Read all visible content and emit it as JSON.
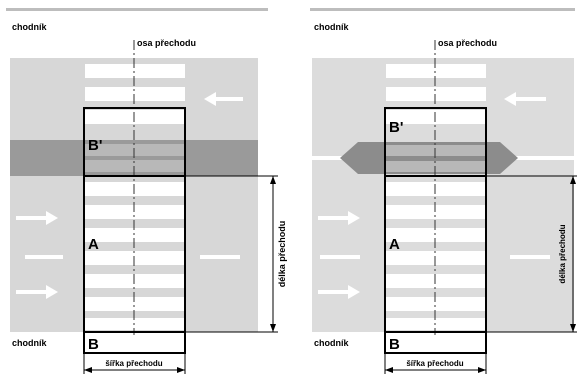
{
  "left_panel": {
    "sidewalk_top": "chodník",
    "sidewalk_bottom": "chodník",
    "crossing_axis": "osa přechodu",
    "zone_b_prime": "B'",
    "zone_a": "A",
    "zone_b": "B",
    "crossing_length": "délka přechodu",
    "crossing_width": "šířka přechodu"
  },
  "right_panel": {
    "sidewalk_top": "chodník",
    "sidewalk_bottom": "chodník",
    "crossing_axis": "osa přechodu",
    "zone_b_prime": "B'",
    "zone_a": "A",
    "zone_b": "B",
    "crossing_length": "délka přechodu",
    "crossing_width": "šířka přechodu"
  },
  "colors": {
    "road": "#d7d7d7",
    "island": "#9a9a9a",
    "stripes": "#ffffff",
    "outline": "#000000"
  }
}
